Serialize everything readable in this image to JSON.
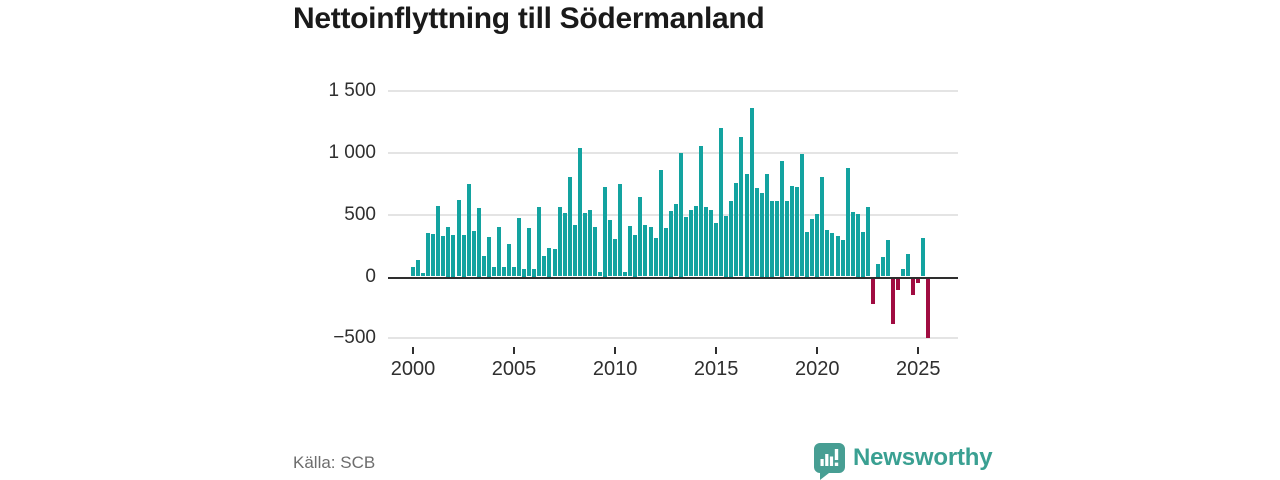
{
  "title": "Nettoinflyttning till Södermanland",
  "source": "Källa: SCB",
  "branding": {
    "logo_text": "Newsworthy",
    "logo_icon": "newsworthy-barchart-bubble-icon"
  },
  "colors": {
    "positive": "#13a3a0",
    "negative": "#a00c41",
    "title_text": "#1a1a1a",
    "axis_text": "#2f2f2f",
    "grid": "#e4e4e4",
    "zero_line": "#2e2e2e",
    "source_text": "#6d6d6d",
    "logo_badge": "#479e93",
    "logo_text_color": "#3aa092"
  },
  "chart_data": {
    "type": "bar",
    "title": "Nettoinflyttning till Södermanland",
    "x_start": "2000-Q1",
    "frequency": "quarterly",
    "values": [
      80,
      130,
      25,
      355,
      345,
      570,
      330,
      405,
      340,
      620,
      340,
      750,
      370,
      555,
      165,
      320,
      80,
      400,
      80,
      260,
      80,
      475,
      65,
      395,
      65,
      560,
      165,
      235,
      220,
      560,
      515,
      805,
      415,
      1040,
      515,
      535,
      400,
      40,
      725,
      460,
      300,
      750,
      40,
      410,
      340,
      645,
      420,
      400,
      310,
      860,
      390,
      530,
      590,
      1000,
      480,
      535,
      570,
      1055,
      560,
      535,
      435,
      1200,
      490,
      615,
      760,
      1130,
      830,
      1365,
      720,
      680,
      830,
      615,
      610,
      935,
      610,
      730,
      725,
      995,
      360,
      465,
      510,
      805,
      375,
      355,
      330,
      295,
      880,
      520,
      510,
      360,
      560,
      -210,
      105,
      155,
      295,
      -365,
      -95,
      60,
      180,
      -135,
      -40,
      315,
      -480
    ],
    "x_tick_years": [
      2000,
      2005,
      2010,
      2015,
      2020,
      2025
    ],
    "x_tick_labels": [
      "2000",
      "2005",
      "2010",
      "2015",
      "2020",
      "2025"
    ],
    "y_ticks": [
      1500,
      1000,
      500,
      0,
      -500
    ],
    "y_tick_labels": [
      "1 500",
      "1 000",
      "500",
      "0",
      "−500"
    ],
    "gridline_values": [
      1500,
      1000,
      500,
      -500
    ],
    "ylim": [
      -500,
      1500
    ],
    "grid": true,
    "legend": false
  }
}
